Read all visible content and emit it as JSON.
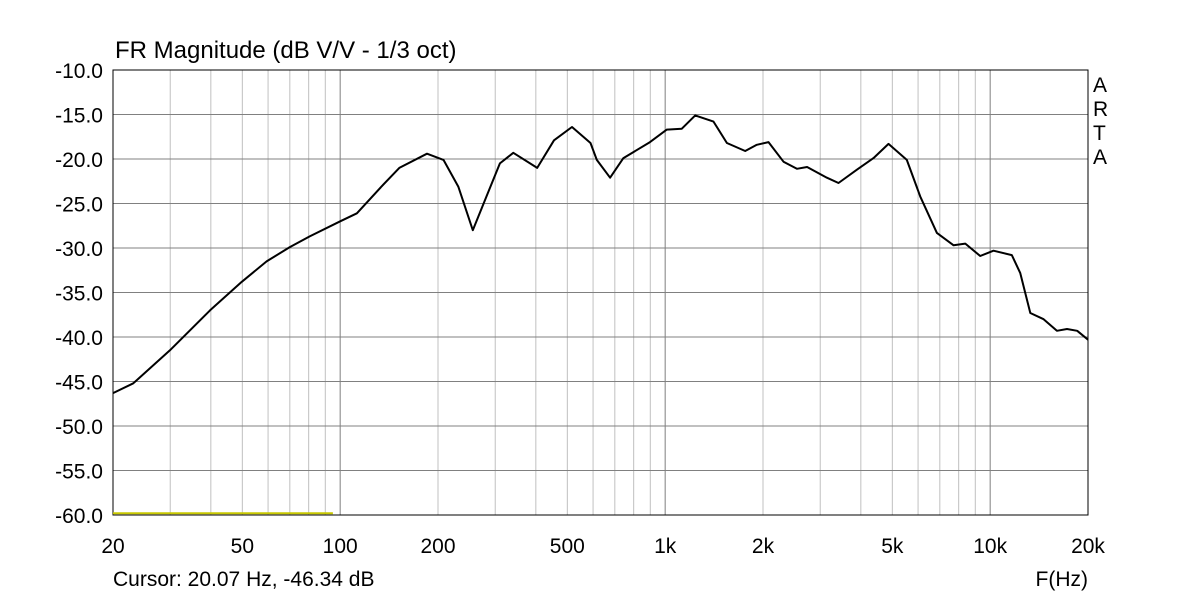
{
  "chart_data": {
    "type": "line",
    "title": "FR Magnitude (dB V/V - 1/3 oct)",
    "xlabel": "F(Hz)",
    "ylabel": "",
    "xscale": "log",
    "xlim": [
      20,
      20000
    ],
    "ylim": [
      -60,
      -10
    ],
    "grid": true,
    "watermark": "ARTA",
    "x_ticks": [
      {
        "value": 20,
        "label": "20"
      },
      {
        "value": 50,
        "label": "50"
      },
      {
        "value": 100,
        "label": "100"
      },
      {
        "value": 200,
        "label": "200"
      },
      {
        "value": 500,
        "label": "500"
      },
      {
        "value": 1000,
        "label": "1k"
      },
      {
        "value": 2000,
        "label": "2k"
      },
      {
        "value": 5000,
        "label": "5k"
      },
      {
        "value": 10000,
        "label": "10k"
      },
      {
        "value": 20000,
        "label": "20k"
      }
    ],
    "y_ticks": [
      {
        "value": -10,
        "label": "-10.0"
      },
      {
        "value": -15,
        "label": "-15.0"
      },
      {
        "value": -20,
        "label": "-20.0"
      },
      {
        "value": -25,
        "label": "-25.0"
      },
      {
        "value": -30,
        "label": "-30.0"
      },
      {
        "value": -35,
        "label": "-35.0"
      },
      {
        "value": -40,
        "label": "-40.0"
      },
      {
        "value": -45,
        "label": "-45.0"
      },
      {
        "value": -50,
        "label": "-50.0"
      },
      {
        "value": -55,
        "label": "-55.0"
      },
      {
        "value": -60,
        "label": "-60.0"
      }
    ],
    "series": [
      {
        "color": "#000000",
        "x": [
          20,
          23.1,
          29.9,
          39.8,
          49.8,
          59.4,
          70,
          80.6,
          100,
          112.6,
          135.6,
          152,
          185,
          208,
          231,
          256,
          282,
          310,
          341,
          404,
          455,
          517,
          589,
          616,
          677,
          744,
          898,
          1012,
          1125,
          1237,
          1408,
          1549,
          1763,
          1914,
          2080,
          2312,
          2543,
          2734,
          3146,
          3414,
          3889,
          4375,
          4865,
          5540,
          6093,
          6855,
          7716,
          8387,
          9316,
          10240,
          11660,
          12370,
          13290,
          14600,
          16050,
          17240,
          18530,
          20000
        ],
        "y": [
          -46.3,
          -45.2,
          -41.5,
          -37.0,
          -33.8,
          -31.5,
          -29.9,
          -28.7,
          -27.0,
          -26.1,
          -22.9,
          -21.0,
          -19.4,
          -20.1,
          -23.1,
          -28.0,
          -24.2,
          -20.5,
          -19.3,
          -21.0,
          -17.9,
          -16.4,
          -18.2,
          -20.1,
          -22.1,
          -19.9,
          -18.1,
          -16.7,
          -16.6,
          -15.1,
          -15.8,
          -18.2,
          -19.1,
          -18.4,
          -18.1,
          -20.3,
          -21.1,
          -20.9,
          -22.1,
          -22.7,
          -21.2,
          -19.9,
          -18.3,
          -20.1,
          -24.2,
          -28.3,
          -29.7,
          -29.5,
          -30.9,
          -30.3,
          -30.8,
          -32.8,
          -37.3,
          -38.0,
          -39.3,
          -39.1,
          -39.3,
          -40.3
        ]
      },
      {
        "color": "#c8c800",
        "x": [
          20,
          95
        ],
        "y": [
          -59.8,
          -59.8
        ]
      }
    ]
  },
  "cursor_readout": "Cursor: 20.07 Hz, -46.34 dB"
}
